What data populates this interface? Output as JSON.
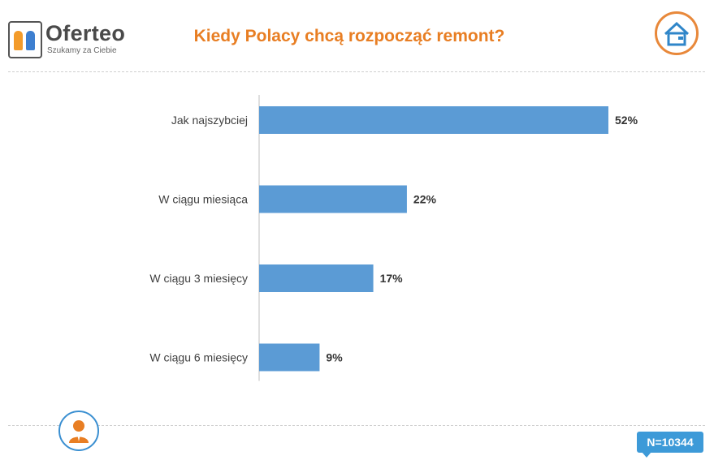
{
  "brand": {
    "name": "Oferteo",
    "tagline": "Szukamy za Ciebie"
  },
  "sample": {
    "label": "N=10344"
  },
  "chart_data": {
    "type": "bar",
    "orientation": "horizontal",
    "title": "Kiedy Polacy chcą rozpocząć remont?",
    "categories": [
      "Jak najszybciej",
      "W ciągu miesiąca",
      "W ciągu 3 miesięcy",
      "W ciągu 6 miesięcy"
    ],
    "values": [
      52,
      22,
      17,
      9
    ],
    "value_labels": [
      "52%",
      "22%",
      "17%",
      "9%"
    ],
    "xlim": [
      0,
      52
    ],
    "grid": false,
    "bar_color": "#5b9bd5"
  },
  "colors": {
    "accent": "#e87e23",
    "brand_blue": "#3d9ad8"
  }
}
